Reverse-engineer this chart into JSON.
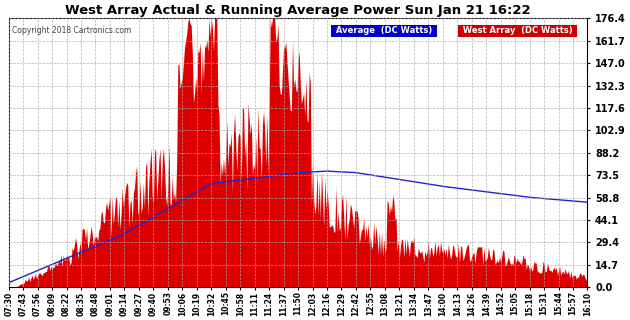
{
  "title": "West Array Actual & Running Average Power Sun Jan 21 16:22",
  "copyright": "Copyright 2018 Cartronics.com",
  "ylabel_right_ticks": [
    0.0,
    14.7,
    29.4,
    44.1,
    58.8,
    73.5,
    88.2,
    102.9,
    117.6,
    132.3,
    147.0,
    161.7,
    176.4
  ],
  "ymin": 0.0,
  "ymax": 176.4,
  "x_tick_labels": [
    "07:30",
    "07:43",
    "07:56",
    "08:09",
    "08:22",
    "08:35",
    "08:48",
    "09:01",
    "09:14",
    "09:27",
    "09:40",
    "09:53",
    "10:06",
    "10:19",
    "10:32",
    "10:45",
    "10:58",
    "11:11",
    "11:24",
    "11:37",
    "11:50",
    "12:03",
    "12:16",
    "12:29",
    "12:42",
    "12:55",
    "13:08",
    "13:21",
    "13:34",
    "13:47",
    "14:00",
    "14:13",
    "14:26",
    "14:39",
    "14:52",
    "15:05",
    "15:18",
    "15:31",
    "15:44",
    "15:57",
    "16:10"
  ],
  "area_color": "#dd0000",
  "line_color": "#2222cc",
  "background_color": "#ffffff",
  "grid_color": "#aaaaaa",
  "title_color": "#000000",
  "legend_avg_bg": "#0000cc",
  "legend_west_bg": "#cc0000",
  "legend_avg_text": "Average  (DC Watts)",
  "legend_west_text": "West Array  (DC Watts)"
}
